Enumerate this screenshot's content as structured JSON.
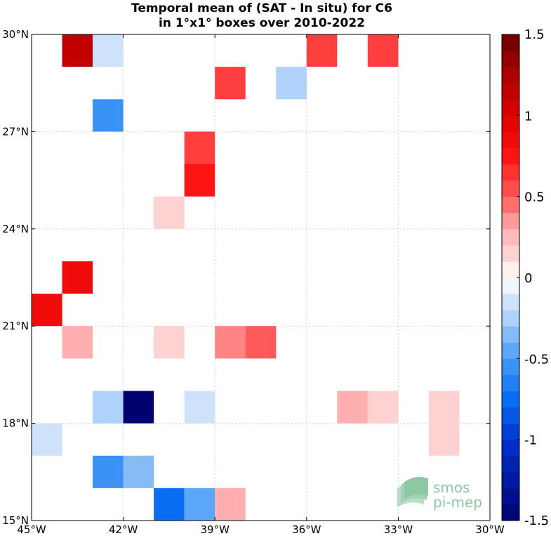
{
  "chart_data": {
    "type": "heatmap",
    "title": [
      "Temporal mean of (SAT - In situ) for C6",
      "in 1°x1° boxes over 2010-2022"
    ],
    "xlim": [
      -45,
      -30
    ],
    "ylim": [
      15,
      30
    ],
    "x_ticks": [
      {
        "value": -45,
        "label": "45°W"
      },
      {
        "value": -42,
        "label": "42°W"
      },
      {
        "value": -39,
        "label": "39°W"
      },
      {
        "value": -36,
        "label": "36°W"
      },
      {
        "value": -33,
        "label": "33°W"
      },
      {
        "value": -30,
        "label": "30°W"
      }
    ],
    "y_ticks": [
      {
        "value": 15,
        "label": "15°N"
      },
      {
        "value": 18,
        "label": "18°N"
      },
      {
        "value": 21,
        "label": "21°N"
      },
      {
        "value": 24,
        "label": "24°N"
      },
      {
        "value": 27,
        "label": "27°N"
      },
      {
        "value": 30,
        "label": "30°N"
      }
    ],
    "grid": true,
    "colorbar": {
      "range": [
        -1.5,
        1.5
      ],
      "steps": 30,
      "position": "right",
      "ticks": [
        {
          "value": 1.5,
          "label": "1.5"
        },
        {
          "value": 1,
          "label": "1"
        },
        {
          "value": 0.5,
          "label": "0.5"
        },
        {
          "value": 0,
          "label": "0"
        },
        {
          "value": -0.5,
          "label": "-0.5"
        },
        {
          "value": -1,
          "label": "-1"
        },
        {
          "value": -1.5,
          "label": "-1.5"
        }
      ]
    },
    "cells": [
      {
        "lon": -44,
        "lat": 29,
        "value": 1.15
      },
      {
        "lon": -43,
        "lat": 29,
        "value": -0.15
      },
      {
        "lon": -36,
        "lat": 29,
        "value": 0.6
      },
      {
        "lon": -34,
        "lat": 29,
        "value": 0.6
      },
      {
        "lon": -39,
        "lat": 28,
        "value": 0.6
      },
      {
        "lon": -37,
        "lat": 28,
        "value": -0.25
      },
      {
        "lon": -43,
        "lat": 27,
        "value": -0.55
      },
      {
        "lon": -40,
        "lat": 26,
        "value": 0.6
      },
      {
        "lon": -40,
        "lat": 25,
        "value": 0.75
      },
      {
        "lon": -41,
        "lat": 24,
        "value": 0.15
      },
      {
        "lon": -44,
        "lat": 22,
        "value": 0.85
      },
      {
        "lon": -45,
        "lat": 21,
        "value": 0.85
      },
      {
        "lon": -44,
        "lat": 20,
        "value": 0.3
      },
      {
        "lon": -41,
        "lat": 20,
        "value": 0.15
      },
      {
        "lon": -39,
        "lat": 20,
        "value": 0.4
      },
      {
        "lon": -38,
        "lat": 20,
        "value": 0.5
      },
      {
        "lon": -43,
        "lat": 18,
        "value": -0.25
      },
      {
        "lon": -42,
        "lat": 18,
        "value": -1.5
      },
      {
        "lon": -40,
        "lat": 18,
        "value": -0.15
      },
      {
        "lon": -35,
        "lat": 18,
        "value": 0.3
      },
      {
        "lon": -34,
        "lat": 18,
        "value": 0.15
      },
      {
        "lon": -32,
        "lat": 18,
        "value": 0.15
      },
      {
        "lon": -32,
        "lat": 17,
        "value": 0.15
      },
      {
        "lon": -45,
        "lat": 17,
        "value": -0.15
      },
      {
        "lon": -43,
        "lat": 16,
        "value": -0.55
      },
      {
        "lon": -42,
        "lat": 16,
        "value": -0.35
      },
      {
        "lon": -41,
        "lat": 15,
        "value": -0.75
      },
      {
        "lon": -40,
        "lat": 15,
        "value": -0.45
      },
      {
        "lon": -39,
        "lat": 15,
        "value": 0.3
      }
    ]
  },
  "logo": {
    "line1": "smos",
    "line2": "pi-mep",
    "color": "#8dc7a3"
  }
}
